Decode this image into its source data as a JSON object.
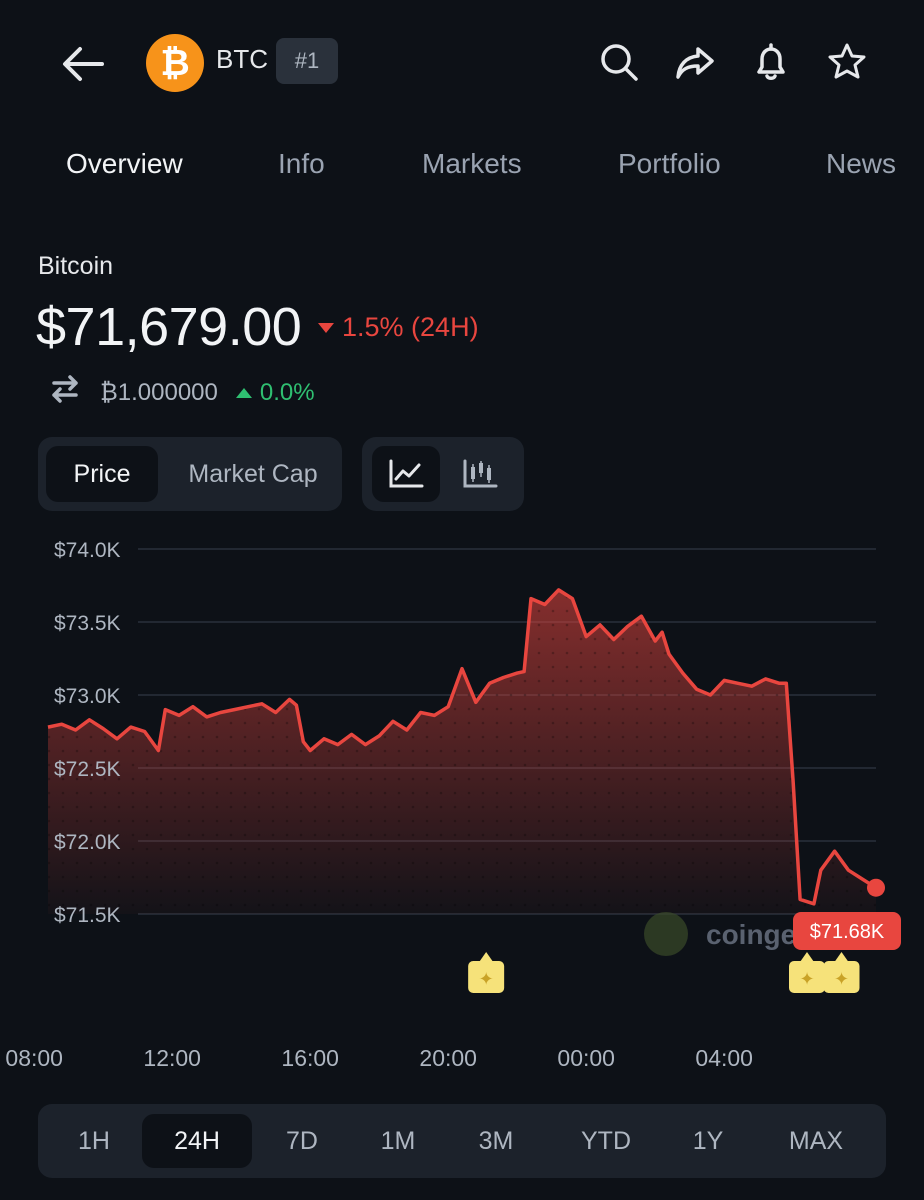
{
  "header": {
    "symbol": "BTC",
    "rank": "#1",
    "logo_glyph": "₿",
    "icons": [
      "back-arrow-icon",
      "search-icon",
      "share-icon",
      "bell-icon",
      "star-icon"
    ]
  },
  "tabs": [
    {
      "label": "Overview",
      "active": true
    },
    {
      "label": "Info",
      "active": false
    },
    {
      "label": "Markets",
      "active": false
    },
    {
      "label": "Portfolio",
      "active": false
    },
    {
      "label": "News",
      "active": false
    }
  ],
  "coin": {
    "name": "Bitcoin",
    "price": "$71,679.00",
    "change_24h": "1.5% (24H)",
    "btc_value": "₿1.000000",
    "btc_change": "0.0%"
  },
  "toggles": {
    "price_label": "Price",
    "market_cap_label": "Market Cap",
    "selected_metric": "Price",
    "selected_chart": "line"
  },
  "colors": {
    "accent_red": "#e8463f",
    "accent_green": "#2fbf71",
    "btc_orange": "#f7931a",
    "marker_yellow": "#f6e27a"
  },
  "chart_data": {
    "type": "area",
    "ylim": [
      71500,
      74000
    ],
    "y_ticks": [
      {
        "value": 74000,
        "label": "$74.0K"
      },
      {
        "value": 73500,
        "label": "$73.5K"
      },
      {
        "value": 73000,
        "label": "$73.0K"
      },
      {
        "value": 72500,
        "label": "$72.5K"
      },
      {
        "value": 72000,
        "label": "$72.0K"
      },
      {
        "value": 71500,
        "label": "$71.5K"
      }
    ],
    "x_ticks": [
      {
        "value": 8,
        "label": "08:00"
      },
      {
        "value": 12,
        "label": "12:00"
      },
      {
        "value": 16,
        "label": "16:00"
      },
      {
        "value": 20,
        "label": "20:00"
      },
      {
        "value": 24,
        "label": "00:00"
      },
      {
        "value": 28,
        "label": "04:00"
      }
    ],
    "xlim": [
      8.4,
      32.4
    ],
    "series": [
      {
        "points": [
          [
            8.4,
            72780
          ],
          [
            8.8,
            72800
          ],
          [
            9.2,
            72760
          ],
          [
            9.6,
            72830
          ],
          [
            10.0,
            72770
          ],
          [
            10.4,
            72700
          ],
          [
            10.8,
            72780
          ],
          [
            11.2,
            72750
          ],
          [
            11.6,
            72620
          ],
          [
            11.8,
            72900
          ],
          [
            12.2,
            72860
          ],
          [
            12.6,
            72920
          ],
          [
            13.0,
            72850
          ],
          [
            13.4,
            72880
          ],
          [
            13.8,
            72900
          ],
          [
            14.2,
            72920
          ],
          [
            14.6,
            72940
          ],
          [
            15.0,
            72880
          ],
          [
            15.4,
            72970
          ],
          [
            15.6,
            72930
          ],
          [
            15.8,
            72680
          ],
          [
            16.0,
            72620
          ],
          [
            16.4,
            72700
          ],
          [
            16.8,
            72660
          ],
          [
            17.2,
            72730
          ],
          [
            17.6,
            72660
          ],
          [
            18.0,
            72720
          ],
          [
            18.4,
            72820
          ],
          [
            18.8,
            72760
          ],
          [
            19.2,
            72880
          ],
          [
            19.6,
            72860
          ],
          [
            20.0,
            72920
          ],
          [
            20.4,
            73180
          ],
          [
            20.8,
            72950
          ],
          [
            21.2,
            73080
          ],
          [
            21.6,
            73120
          ],
          [
            22.0,
            73150
          ],
          [
            22.2,
            73160
          ],
          [
            22.4,
            73660
          ],
          [
            22.8,
            73620
          ],
          [
            23.2,
            73720
          ],
          [
            23.6,
            73660
          ],
          [
            24.0,
            73400
          ],
          [
            24.4,
            73480
          ],
          [
            24.8,
            73380
          ],
          [
            25.2,
            73470
          ],
          [
            25.6,
            73540
          ],
          [
            26.0,
            73370
          ],
          [
            26.2,
            73430
          ],
          [
            26.4,
            73280
          ],
          [
            26.8,
            73150
          ],
          [
            27.2,
            73040
          ],
          [
            27.6,
            73000
          ],
          [
            28.0,
            73100
          ],
          [
            28.4,
            73080
          ],
          [
            28.8,
            73060
          ],
          [
            29.2,
            73110
          ],
          [
            29.6,
            73080
          ],
          [
            29.8,
            73080
          ],
          [
            30.0,
            72400
          ],
          [
            30.2,
            71600
          ],
          [
            30.6,
            71570
          ],
          [
            30.8,
            71800
          ],
          [
            31.2,
            71930
          ],
          [
            31.6,
            71800
          ],
          [
            32.0,
            71740
          ],
          [
            32.4,
            71680
          ]
        ]
      }
    ],
    "last_price_label": "$71.68K",
    "watermark": "coinge",
    "event_markers": [
      {
        "x": 21.1
      },
      {
        "x": 30.4
      },
      {
        "x": 31.4
      }
    ],
    "grid": true
  },
  "time_ranges": [
    {
      "label": "1H",
      "active": false
    },
    {
      "label": "24H",
      "active": true
    },
    {
      "label": "7D",
      "active": false
    },
    {
      "label": "1M",
      "active": false
    },
    {
      "label": "3M",
      "active": false
    },
    {
      "label": "YTD",
      "active": false
    },
    {
      "label": "1Y",
      "active": false
    },
    {
      "label": "MAX",
      "active": false
    }
  ]
}
